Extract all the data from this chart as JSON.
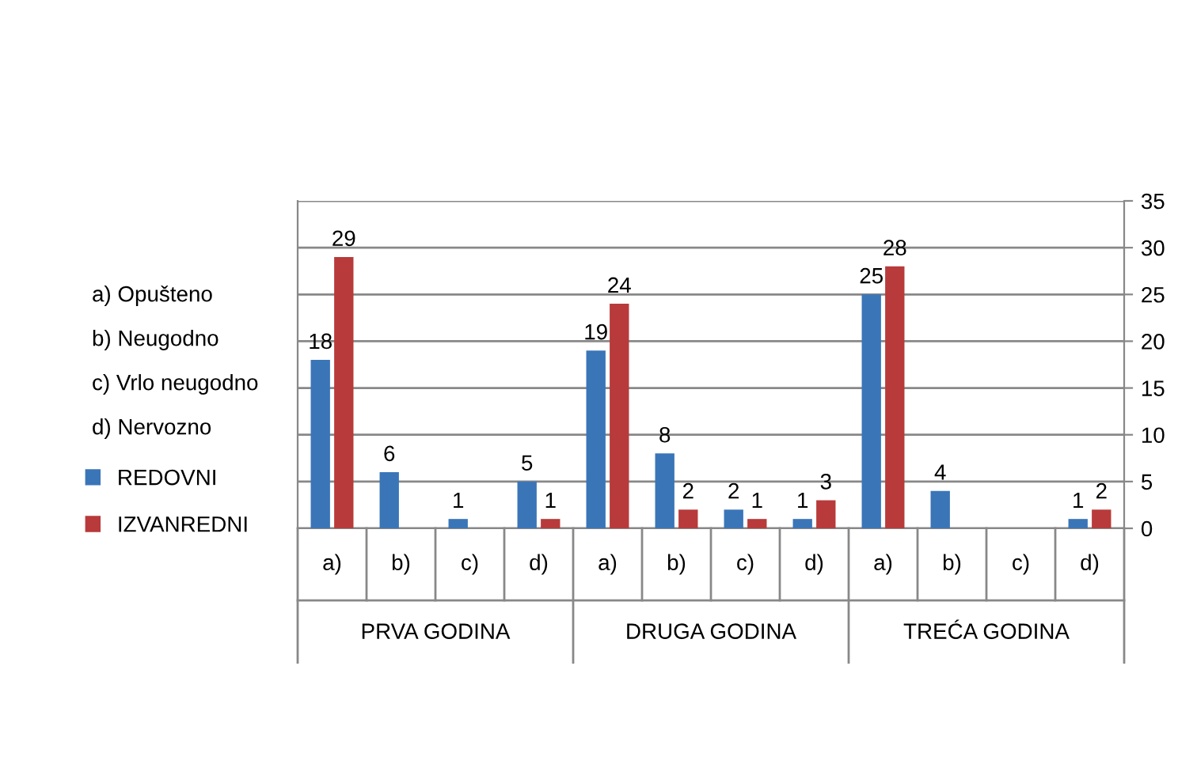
{
  "chart_data": {
    "type": "bar",
    "categories": [
      "a)",
      "b)",
      "c)",
      "d)",
      "a)",
      "b)",
      "c)",
      "d)",
      "a)",
      "b)",
      "c)",
      "d)"
    ],
    "series": [
      {
        "name": "REDOVNI",
        "color": "#3a75b8",
        "values": [
          18,
          6,
          1,
          5,
          19,
          8,
          2,
          1,
          25,
          4,
          null,
          1
        ]
      },
      {
        "name": "IZVANREDNI",
        "color": "#b83a3a",
        "values": [
          29,
          null,
          null,
          1,
          24,
          2,
          1,
          3,
          28,
          null,
          null,
          2
        ]
      }
    ],
    "data_labels": true,
    "ylim": [
      0,
      35
    ],
    "yticks": [
      0,
      5,
      10,
      15,
      20,
      25,
      30,
      35
    ],
    "grid": "y",
    "legend": "left",
    "annotations": [
      "a) Opušteno",
      "b) Neugodno",
      "c) Vrlo neugodno",
      "d) Nervozno",
      "PRVA GODINA",
      "DRUGA GODINA",
      "TREĆA GODINA"
    ]
  }
}
